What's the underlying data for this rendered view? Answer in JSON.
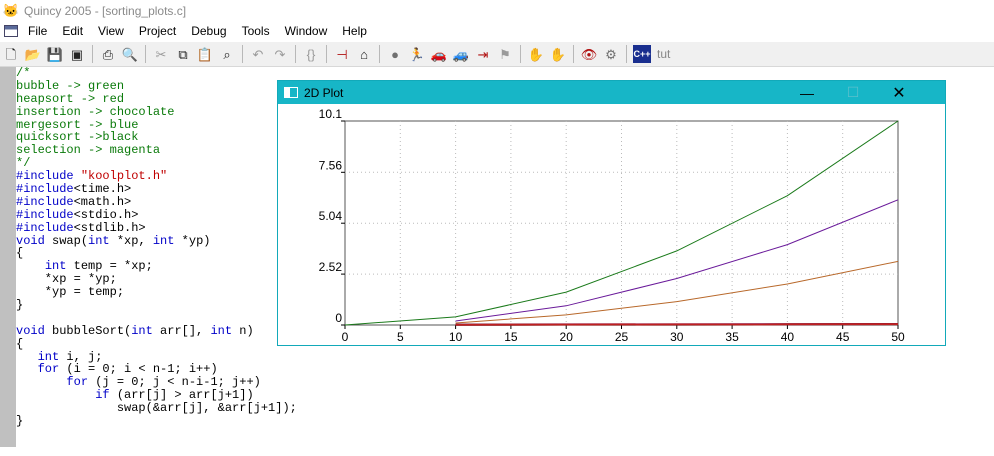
{
  "window": {
    "title": "Quincy 2005 - [sorting_plots.c]",
    "icon": "cat-icon"
  },
  "menu": {
    "items": [
      "File",
      "Edit",
      "View",
      "Project",
      "Debug",
      "Tools",
      "Window",
      "Help"
    ]
  },
  "toolbar": {
    "icons": [
      "new-file-icon",
      "open-folder-icon",
      "save-icon",
      "save-all-icon",
      "print-icon",
      "print-preview-icon",
      "cut-icon",
      "copy-icon",
      "paste-icon",
      "find-icon",
      "undo-icon",
      "redo-icon",
      "braces-icon",
      "breakpoint-icon",
      "home-icon",
      "stop-icon",
      "run-icon",
      "step-icon",
      "step-over-icon",
      "step-out-icon",
      "flag-icon",
      "hand-icon",
      "watch-icon",
      "eye-icon",
      "gear-icon",
      "cpp-icon",
      "tutorial-icon"
    ],
    "cpp_label": "C++",
    "tut_label": "tut"
  },
  "editor": {
    "lines": [
      [
        {
          "t": "/*",
          "c": "com"
        }
      ],
      [
        {
          "t": "bubble -> green",
          "c": "com"
        }
      ],
      [
        {
          "t": "heapsort -> red",
          "c": "com"
        }
      ],
      [
        {
          "t": "insertion -> chocolate",
          "c": "com"
        }
      ],
      [
        {
          "t": "mergesort -> blue",
          "c": "com"
        }
      ],
      [
        {
          "t": "quicksort ->black",
          "c": "com"
        }
      ],
      [
        {
          "t": "selection -> magenta",
          "c": "com"
        }
      ],
      [
        {
          "t": "*/",
          "c": "com"
        }
      ],
      [
        {
          "t": "#include ",
          "c": "kw"
        },
        {
          "t": "\"koolplot.h\"",
          "c": "str"
        }
      ],
      [
        {
          "t": "#include",
          "c": "kw"
        },
        {
          "t": "<time.h>",
          "c": ""
        }
      ],
      [
        {
          "t": "#include",
          "c": "kw"
        },
        {
          "t": "<math.h>",
          "c": ""
        }
      ],
      [
        {
          "t": "#include",
          "c": "kw"
        },
        {
          "t": "<stdio.h>",
          "c": ""
        }
      ],
      [
        {
          "t": "#include",
          "c": "kw"
        },
        {
          "t": "<stdlib.h>",
          "c": ""
        }
      ],
      [
        {
          "t": "void",
          "c": "kw"
        },
        {
          "t": " swap(",
          "c": ""
        },
        {
          "t": "int",
          "c": "kw"
        },
        {
          "t": " *xp, ",
          "c": ""
        },
        {
          "t": "int",
          "c": "kw"
        },
        {
          "t": " *yp)",
          "c": ""
        }
      ],
      [
        {
          "t": "{",
          "c": ""
        }
      ],
      [
        {
          "t": "    ",
          "c": ""
        },
        {
          "t": "int",
          "c": "kw"
        },
        {
          "t": " temp = *xp;",
          "c": ""
        }
      ],
      [
        {
          "t": "    *xp = *yp;",
          "c": ""
        }
      ],
      [
        {
          "t": "    *yp = temp;",
          "c": ""
        }
      ],
      [
        {
          "t": "}",
          "c": ""
        }
      ],
      [
        {
          "t": "",
          "c": ""
        }
      ],
      [
        {
          "t": "void",
          "c": "kw"
        },
        {
          "t": " bubbleSort(",
          "c": ""
        },
        {
          "t": "int",
          "c": "kw"
        },
        {
          "t": " arr[], ",
          "c": ""
        },
        {
          "t": "int",
          "c": "kw"
        },
        {
          "t": " n)",
          "c": ""
        }
      ],
      [
        {
          "t": "{",
          "c": ""
        }
      ],
      [
        {
          "t": "   ",
          "c": ""
        },
        {
          "t": "int",
          "c": "kw"
        },
        {
          "t": " i, j;",
          "c": ""
        }
      ],
      [
        {
          "t": "   ",
          "c": ""
        },
        {
          "t": "for",
          "c": "kw"
        },
        {
          "t": " (i = 0; i < n-1; i++)",
          "c": ""
        }
      ],
      [
        {
          "t": "       ",
          "c": ""
        },
        {
          "t": "for",
          "c": "kw"
        },
        {
          "t": " (j = 0; j < n-i-1; j++)",
          "c": ""
        }
      ],
      [
        {
          "t": "           ",
          "c": ""
        },
        {
          "t": "if",
          "c": "kw"
        },
        {
          "t": " (arr[j] > arr[j+1])",
          "c": ""
        }
      ],
      [
        {
          "t": "              swap(&arr[j], &arr[j+1]);",
          "c": ""
        }
      ],
      [
        {
          "t": "}",
          "c": ""
        }
      ]
    ]
  },
  "plot_window": {
    "title": "2D Plot",
    "icon": "window-icon",
    "minimize_glyph": "—",
    "maximize_glyph": "☐",
    "close_glyph": "✕"
  },
  "chart_data": {
    "type": "line",
    "title": "",
    "xlabel": "",
    "ylabel": "",
    "xlim": [
      0,
      50
    ],
    "ylim": [
      0,
      10.1
    ],
    "xticks": [
      0,
      5,
      10,
      15,
      20,
      25,
      30,
      35,
      40,
      45,
      50
    ],
    "yticks": [
      0,
      2.52,
      5.04,
      7.56,
      10.1
    ],
    "ytick_labels": [
      "0",
      "2.52",
      "5.04",
      "7.56",
      "10.1"
    ],
    "grid": true,
    "series": [
      {
        "color": "#1a7a1a",
        "x": [
          0,
          10,
          20,
          30,
          40,
          50
        ],
        "y": [
          0,
          0.4,
          1.63,
          3.67,
          6.4,
          10.1
        ]
      },
      {
        "color": "#6a1a9a",
        "x": [
          10,
          20,
          30,
          40,
          50
        ],
        "y": [
          0.2,
          0.95,
          2.3,
          3.98,
          6.2
        ]
      },
      {
        "color": "#b8682a",
        "x": [
          10,
          20,
          30,
          40,
          50
        ],
        "y": [
          0.1,
          0.5,
          1.16,
          2.03,
          3.15
        ]
      },
      {
        "color": "#2020c0",
        "x": [
          10,
          20,
          30,
          40,
          50
        ],
        "y": [
          0.02,
          0.03,
          0.03,
          0.04,
          0.05
        ]
      },
      {
        "color": "#111111",
        "x": [
          10,
          20,
          30,
          40,
          50
        ],
        "y": [
          0.01,
          0.02,
          0.02,
          0.03,
          0.04
        ]
      },
      {
        "color": "#c02020",
        "x": [
          10,
          20,
          30,
          40,
          50
        ],
        "y": [
          0.015,
          0.025,
          0.03,
          0.035,
          0.045
        ]
      }
    ]
  }
}
